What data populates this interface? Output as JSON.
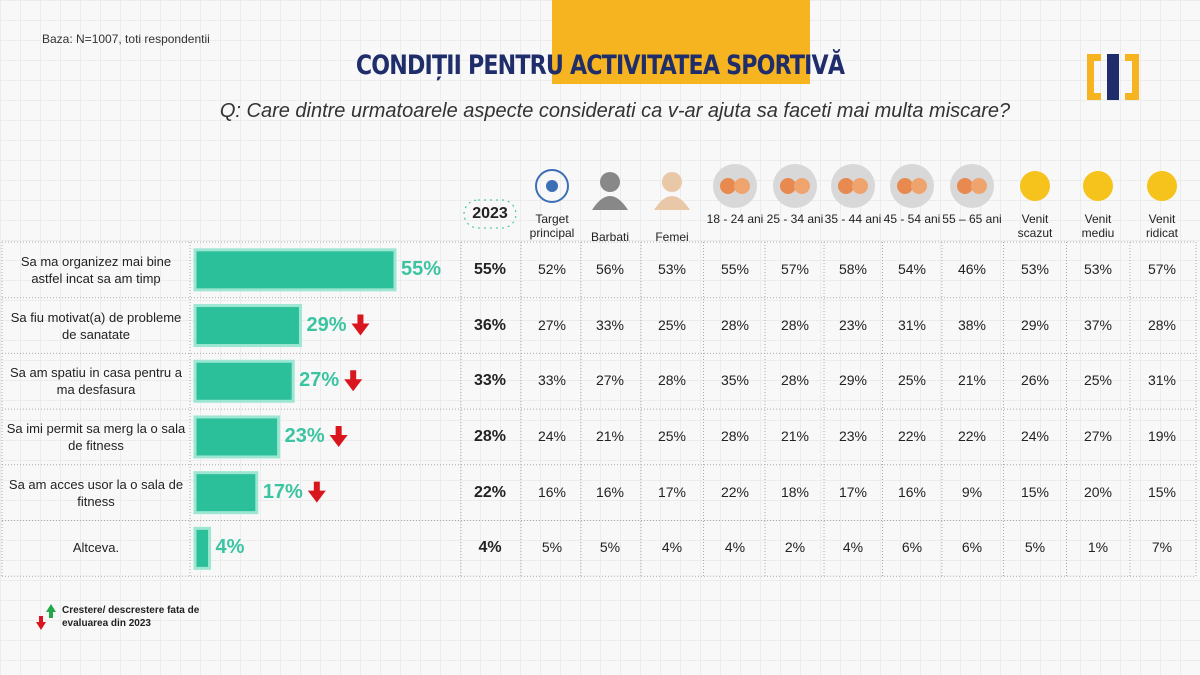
{
  "base": "Baza: N=1007, toti respondentii",
  "title_part1": "CONDIȚII PENTRU",
  "title_part2": "ACTIVITATEA SPORTIVĂ",
  "question": "Q: Care dintre urmatoarele aspecte considerati ca v-ar ajuta sa faceti mai multa miscare?",
  "legend_note": "Crestere/ descrestere fata de evaluarea din 2023",
  "chart_data": {
    "type": "bar",
    "orientation": "horizontal",
    "categories": [
      "Sa ma organizez mai bine astfel incat sa am timp",
      "Sa fiu motivat(a) de probleme de sanatate",
      "Sa am spatiu in casa pentru a ma desfasura",
      "Sa imi permit sa merg la o sala de fitness",
      "Sa am acces usor la o sala de fitness",
      "Altceva."
    ],
    "values": [
      55,
      29,
      27,
      23,
      17,
      4
    ],
    "value_labels": [
      "55%",
      "29%",
      "27%",
      "23%",
      "17%",
      "4%"
    ],
    "trend": [
      null,
      "down",
      "down",
      "down",
      "down",
      null
    ],
    "color": "#2bbf9a",
    "xlim": [
      0,
      55
    ]
  },
  "table": {
    "headers": [
      "2023",
      "Target principal",
      "Barbati",
      "Femei",
      "18 - 24 ani",
      "25 - 34 ani",
      "35 - 44 ani",
      "45 - 54 ani",
      "55 – 65 ani",
      "Venit scazut",
      "Venit mediu",
      "Venit ridicat"
    ],
    "rows": [
      [
        "55%",
        "52%",
        "56%",
        "53%",
        "55%",
        "57%",
        "58%",
        "54%",
        "46%",
        "53%",
        "53%",
        "57%"
      ],
      [
        "36%",
        "27%",
        "33%",
        "25%",
        "28%",
        "28%",
        "23%",
        "31%",
        "38%",
        "29%",
        "37%",
        "28%"
      ],
      [
        "33%",
        "33%",
        "27%",
        "28%",
        "35%",
        "28%",
        "29%",
        "25%",
        "21%",
        "26%",
        "25%",
        "31%"
      ],
      [
        "28%",
        "24%",
        "21%",
        "25%",
        "28%",
        "21%",
        "23%",
        "22%",
        "22%",
        "24%",
        "27%",
        "19%"
      ],
      [
        "22%",
        "16%",
        "16%",
        "17%",
        "22%",
        "18%",
        "17%",
        "16%",
        "9%",
        "15%",
        "20%",
        "15%"
      ],
      [
        "4%",
        "5%",
        "5%",
        "4%",
        "4%",
        "2%",
        "4%",
        "6%",
        "6%",
        "5%",
        "1%",
        "7%"
      ]
    ]
  }
}
